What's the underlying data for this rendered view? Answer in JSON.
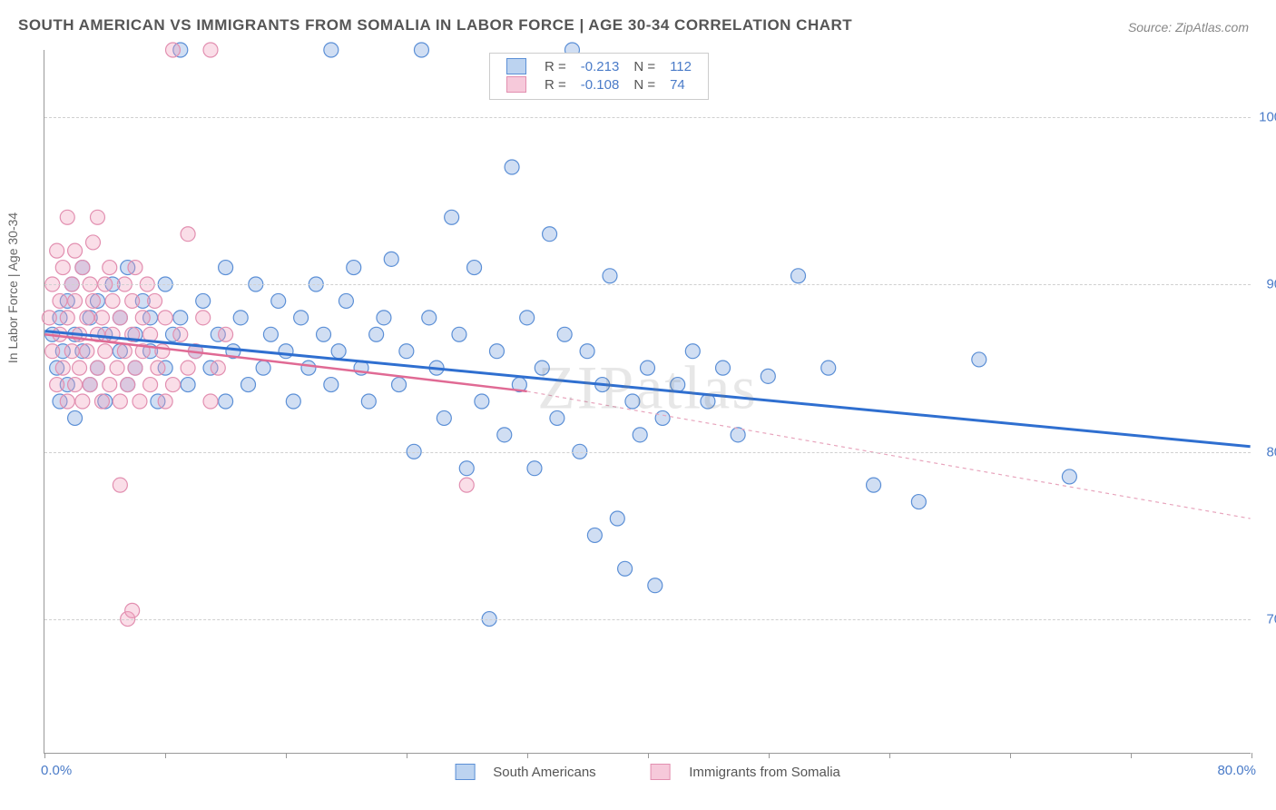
{
  "title": "SOUTH AMERICAN VS IMMIGRANTS FROM SOMALIA IN LABOR FORCE | AGE 30-34 CORRELATION CHART",
  "source": "Source: ZipAtlas.com",
  "watermark": "ZIPatlas",
  "chart": {
    "type": "scatter",
    "y_axis_title": "In Labor Force | Age 30-34",
    "xlim": [
      0,
      80
    ],
    "ylim": [
      62,
      104
    ],
    "x_min_label": "0.0%",
    "x_max_label": "80.0%",
    "y_ticks": [
      70,
      80,
      90,
      100
    ],
    "y_tick_labels": [
      "70.0%",
      "80.0%",
      "90.0%",
      "100.0%"
    ],
    "x_tick_positions": [
      0,
      8,
      16,
      24,
      32,
      40,
      48,
      56,
      64,
      72,
      80
    ],
    "grid_color": "#d0d0d0",
    "background_color": "#ffffff",
    "marker_radius": 8,
    "marker_stroke_width": 1.2,
    "series": [
      {
        "name": "South Americans",
        "fill": "rgba(120,160,220,0.35)",
        "stroke": "#5b8fd6",
        "legend_fill": "#bcd3f0",
        "legend_stroke": "#5b8fd6",
        "R": "-0.213",
        "N": "112",
        "regression": {
          "x1": 0,
          "y1": 87.2,
          "x2": 80,
          "y2": 80.3,
          "color": "#2f6fd0",
          "width": 3,
          "dash": "none"
        },
        "points": [
          [
            0.5,
            87
          ],
          [
            0.8,
            85
          ],
          [
            1,
            88
          ],
          [
            1,
            83
          ],
          [
            1.2,
            86
          ],
          [
            1.5,
            89
          ],
          [
            1.5,
            84
          ],
          [
            1.8,
            90
          ],
          [
            2,
            87
          ],
          [
            2,
            82
          ],
          [
            2.5,
            86
          ],
          [
            2.5,
            91
          ],
          [
            3,
            88
          ],
          [
            3,
            84
          ],
          [
            3.5,
            85
          ],
          [
            3.5,
            89
          ],
          [
            4,
            87
          ],
          [
            4,
            83
          ],
          [
            4.5,
            90
          ],
          [
            5,
            86
          ],
          [
            5,
            88
          ],
          [
            5.5,
            84
          ],
          [
            5.5,
            91
          ],
          [
            6,
            87
          ],
          [
            6,
            85
          ],
          [
            6.5,
            89
          ],
          [
            7,
            86
          ],
          [
            7,
            88
          ],
          [
            7.5,
            83
          ],
          [
            8,
            90
          ],
          [
            8,
            85
          ],
          [
            8.5,
            87
          ],
          [
            9,
            104
          ],
          [
            9,
            88
          ],
          [
            9.5,
            84
          ],
          [
            10,
            86
          ],
          [
            10.5,
            89
          ],
          [
            11,
            85
          ],
          [
            11.5,
            87
          ],
          [
            12,
            91
          ],
          [
            12,
            83
          ],
          [
            12.5,
            86
          ],
          [
            13,
            88
          ],
          [
            13.5,
            84
          ],
          [
            14,
            90
          ],
          [
            14.5,
            85
          ],
          [
            15,
            87
          ],
          [
            15.5,
            89
          ],
          [
            16,
            86
          ],
          [
            16.5,
            83
          ],
          [
            17,
            88
          ],
          [
            17.5,
            85
          ],
          [
            18,
            90
          ],
          [
            18.5,
            87
          ],
          [
            19,
            104
          ],
          [
            19,
            84
          ],
          [
            19.5,
            86
          ],
          [
            20,
            89
          ],
          [
            20.5,
            91
          ],
          [
            21,
            85
          ],
          [
            21.5,
            83
          ],
          [
            22,
            87
          ],
          [
            22.5,
            88
          ],
          [
            23,
            91.5
          ],
          [
            23.5,
            84
          ],
          [
            24,
            86
          ],
          [
            24.5,
            80
          ],
          [
            25,
            104
          ],
          [
            25.5,
            88
          ],
          [
            26,
            85
          ],
          [
            26.5,
            82
          ],
          [
            27,
            94
          ],
          [
            27.5,
            87
          ],
          [
            28,
            79
          ],
          [
            28.5,
            91
          ],
          [
            29,
            83
          ],
          [
            29.5,
            70
          ],
          [
            30,
            86
          ],
          [
            30.5,
            81
          ],
          [
            31,
            97
          ],
          [
            31.5,
            84
          ],
          [
            32,
            88
          ],
          [
            32.5,
            79
          ],
          [
            33,
            85
          ],
          [
            33.5,
            93
          ],
          [
            34,
            82
          ],
          [
            34.5,
            87
          ],
          [
            35,
            104
          ],
          [
            35.5,
            80
          ],
          [
            36,
            86
          ],
          [
            36.5,
            75
          ],
          [
            37,
            84
          ],
          [
            37.5,
            90.5
          ],
          [
            38,
            76
          ],
          [
            38.5,
            73
          ],
          [
            39,
            83
          ],
          [
            39.5,
            81
          ],
          [
            40,
            85
          ],
          [
            40.5,
            72
          ],
          [
            41,
            82
          ],
          [
            42,
            84
          ],
          [
            43,
            86
          ],
          [
            44,
            83
          ],
          [
            45,
            85
          ],
          [
            46,
            81
          ],
          [
            48,
            84.5
          ],
          [
            50,
            90.5
          ],
          [
            52,
            85
          ],
          [
            55,
            78
          ],
          [
            58,
            77
          ],
          [
            62,
            85.5
          ],
          [
            68,
            78.5
          ]
        ]
      },
      {
        "name": "Immigrants from Somalia",
        "fill": "rgba(240,160,190,0.35)",
        "stroke": "#e28fb0",
        "legend_fill": "#f6c9da",
        "legend_stroke": "#e28fb0",
        "R": "-0.108",
        "N": "74",
        "regression_solid": {
          "x1": 0,
          "y1": 87.0,
          "x2": 32,
          "y2": 83.6,
          "color": "#e06a94",
          "width": 2.5
        },
        "regression_dash": {
          "x1": 32,
          "y1": 83.6,
          "x2": 80,
          "y2": 76.0,
          "color": "#e8a5bd",
          "width": 1.2,
          "dash": "4,4"
        },
        "points": [
          [
            0.3,
            88
          ],
          [
            0.5,
            86
          ],
          [
            0.5,
            90
          ],
          [
            0.8,
            84
          ],
          [
            0.8,
            92
          ],
          [
            1,
            87
          ],
          [
            1,
            89
          ],
          [
            1.2,
            85
          ],
          [
            1.2,
            91
          ],
          [
            1.5,
            83
          ],
          [
            1.5,
            88
          ],
          [
            1.5,
            94
          ],
          [
            1.8,
            86
          ],
          [
            1.8,
            90
          ],
          [
            2,
            84
          ],
          [
            2,
            89
          ],
          [
            2,
            92
          ],
          [
            2.3,
            87
          ],
          [
            2.3,
            85
          ],
          [
            2.5,
            91
          ],
          [
            2.5,
            83
          ],
          [
            2.8,
            88
          ],
          [
            2.8,
            86
          ],
          [
            3,
            90
          ],
          [
            3,
            84
          ],
          [
            3.2,
            89
          ],
          [
            3.2,
            92.5
          ],
          [
            3.5,
            87
          ],
          [
            3.5,
            85
          ],
          [
            3.5,
            94
          ],
          [
            3.8,
            83
          ],
          [
            3.8,
            88
          ],
          [
            4,
            86
          ],
          [
            4,
            90
          ],
          [
            4.3,
            84
          ],
          [
            4.3,
            91
          ],
          [
            4.5,
            87
          ],
          [
            4.5,
            89
          ],
          [
            4.8,
            85
          ],
          [
            5,
            88
          ],
          [
            5,
            83
          ],
          [
            5.3,
            86
          ],
          [
            5.3,
            90
          ],
          [
            5.5,
            84
          ],
          [
            5.8,
            89
          ],
          [
            5.8,
            87
          ],
          [
            6,
            85
          ],
          [
            6,
            91
          ],
          [
            6.3,
            83
          ],
          [
            6.5,
            88
          ],
          [
            6.5,
            86
          ],
          [
            6.8,
            90
          ],
          [
            7,
            84
          ],
          [
            7,
            87
          ],
          [
            7.3,
            89
          ],
          [
            7.5,
            85
          ],
          [
            7.8,
            86
          ],
          [
            8,
            88
          ],
          [
            8,
            83
          ],
          [
            8.5,
            104
          ],
          [
            8.5,
            84
          ],
          [
            9,
            87
          ],
          [
            9.5,
            85
          ],
          [
            10,
            86
          ],
          [
            10.5,
            88
          ],
          [
            11,
            104
          ],
          [
            11,
            83
          ],
          [
            11.5,
            85
          ],
          [
            12,
            87
          ],
          [
            5,
            78
          ],
          [
            5.5,
            70
          ],
          [
            5.8,
            70.5
          ],
          [
            28,
            78
          ],
          [
            9.5,
            93
          ]
        ]
      }
    ]
  },
  "legend_top": {
    "R_label": "R =",
    "N_label": "N ="
  }
}
